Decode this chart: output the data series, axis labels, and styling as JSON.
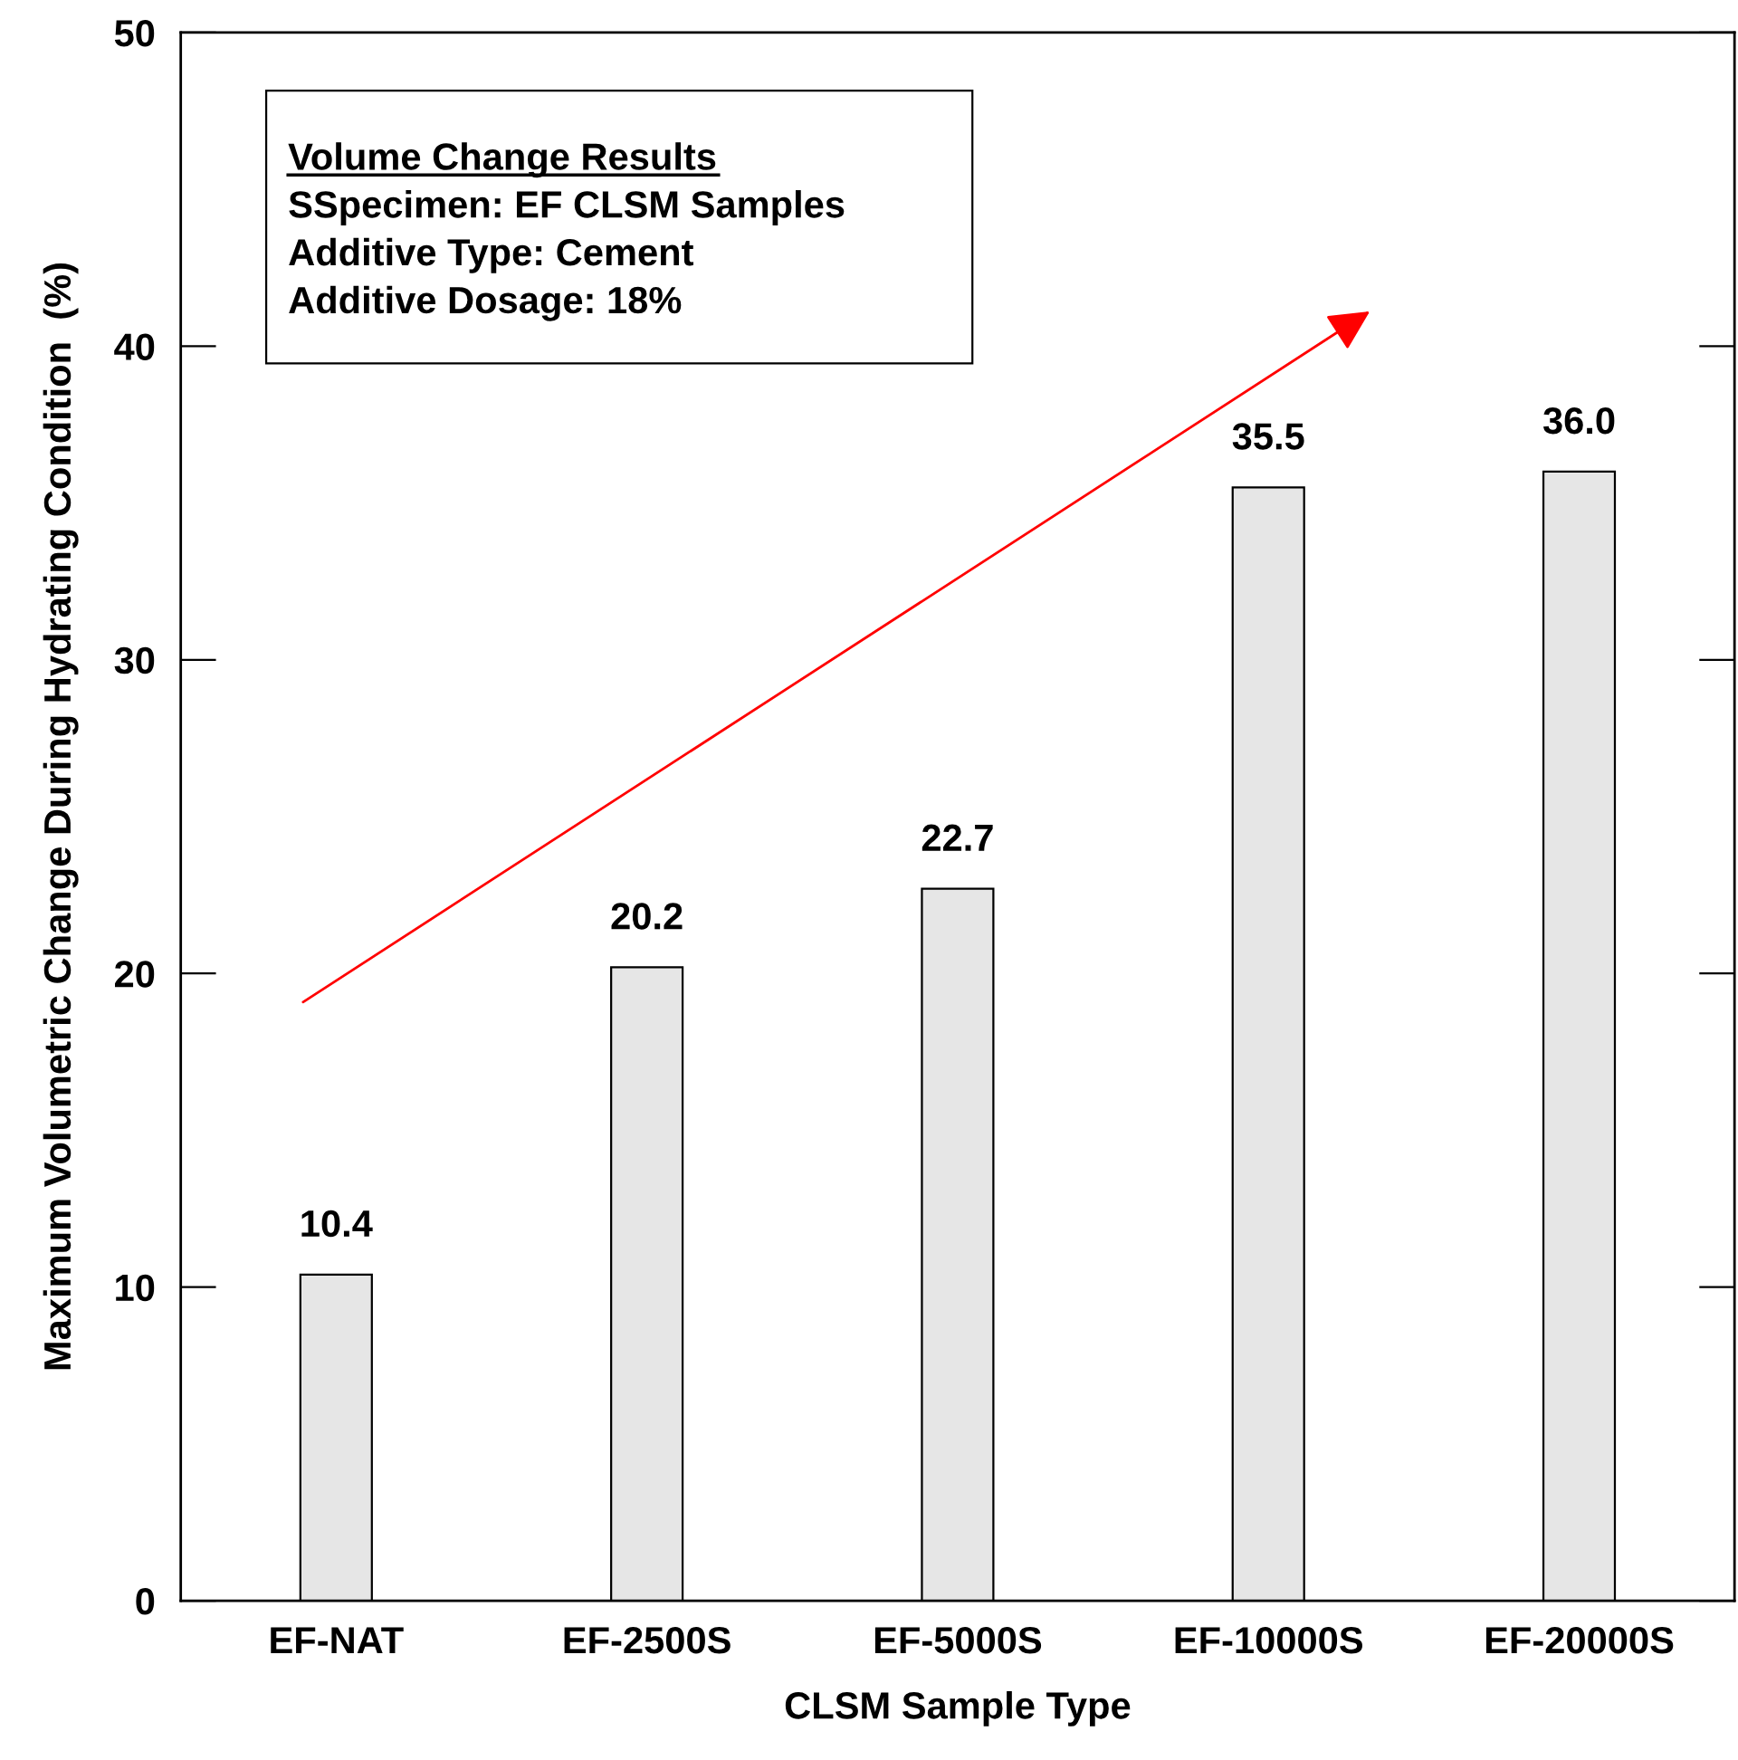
{
  "chart_data": {
    "type": "bar",
    "xlabel": "CLSM Sample Type",
    "ylabel": "Maximum Volumetric Change During Hydrating Condition  (%)",
    "categories": [
      "EF-NAT",
      "EF-2500S",
      "EF-5000S",
      "EF-10000S",
      "EF-20000S"
    ],
    "values": [
      10.4,
      20.2,
      22.7,
      35.5,
      36.0
    ],
    "value_labels": [
      "10.4",
      "20.2",
      "22.7",
      "35.5",
      "36.0"
    ],
    "color": "#e6e6e6",
    "ylim": [
      0,
      50
    ],
    "yticks": [
      0,
      10,
      20,
      30,
      40,
      50
    ],
    "grid": false,
    "annotations": [
      "Volume Change Results",
      "SSpecimen: EF CLSM Samples",
      "Additive Type: Cement",
      "Additive Dosage: 18%"
    ]
  }
}
